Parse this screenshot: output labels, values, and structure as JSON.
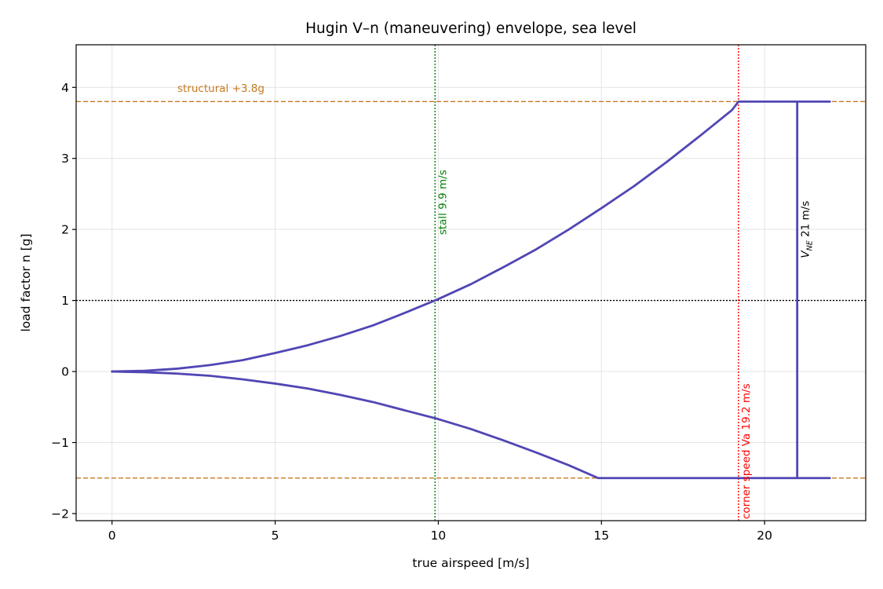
{
  "chart_data": {
    "type": "line",
    "title": "Hugin V–n (maneuvering) envelope, sea level",
    "xlabel": "true airspeed [m/s]",
    "ylabel": "load factor n [g]",
    "xlim": [
      -1.1,
      23.1
    ],
    "ylim": [
      -2.1,
      4.6
    ],
    "xticks": [
      0,
      5,
      10,
      15,
      20
    ],
    "yticks": [
      -2,
      -1,
      0,
      1,
      2,
      3,
      4
    ],
    "xtick_labels": [
      "0",
      "5",
      "10",
      "15",
      "20"
    ],
    "ytick_labels": [
      "−2",
      "−1",
      "0",
      "1",
      "2",
      "3",
      "4"
    ],
    "grid": true,
    "colors": {
      "envelope": "#5046b4",
      "structural": "#c8781e",
      "stall": "#008000",
      "corner": "#ff0000",
      "one_g": "#000000"
    },
    "series": [
      {
        "x": [
          0,
          1,
          2,
          3,
          4,
          5,
          6,
          7,
          8,
          9,
          10,
          11,
          12,
          13,
          14,
          15,
          16,
          17,
          18,
          19,
          19.2,
          22
        ],
        "y": [
          0,
          0.01,
          0.04,
          0.09,
          0.16,
          0.26,
          0.37,
          0.5,
          0.65,
          0.83,
          1.02,
          1.23,
          1.47,
          1.72,
          2.0,
          2.3,
          2.61,
          2.95,
          3.31,
          3.68,
          3.8,
          3.8
        ]
      },
      {
        "x": [
          0,
          1,
          2,
          3,
          4,
          5,
          6,
          7,
          8,
          9,
          10,
          11,
          12,
          13,
          14,
          14.9,
          22
        ],
        "y": [
          0,
          -0.01,
          -0.03,
          -0.06,
          -0.11,
          -0.17,
          -0.24,
          -0.33,
          -0.43,
          -0.55,
          -0.67,
          -0.81,
          -0.97,
          -1.14,
          -1.32,
          -1.5,
          -1.5
        ]
      },
      {
        "x": [
          21,
          21
        ],
        "y": [
          -1.5,
          3.8
        ]
      }
    ],
    "reference_lines": [
      {
        "orientation": "horizontal",
        "value": 3.8,
        "style": "dashed",
        "color_key": "structural"
      },
      {
        "orientation": "horizontal",
        "value": -1.5,
        "style": "dashed",
        "color_key": "structural"
      },
      {
        "orientation": "horizontal",
        "value": 1,
        "style": "dotted",
        "color_key": "one_g"
      },
      {
        "orientation": "vertical",
        "value": 9.9,
        "style": "dotted",
        "color_key": "stall"
      },
      {
        "orientation": "vertical",
        "value": 19.2,
        "style": "dotted",
        "color_key": "corner"
      }
    ],
    "annotations": {
      "structural": "structural +3.8g",
      "stall": "stall 9.9 m/s",
      "corner": "corner speed Va 19.2 m/s",
      "vne_v": "V",
      "vne_sub": "NE",
      "vne_rest": " 21 m/s"
    }
  }
}
